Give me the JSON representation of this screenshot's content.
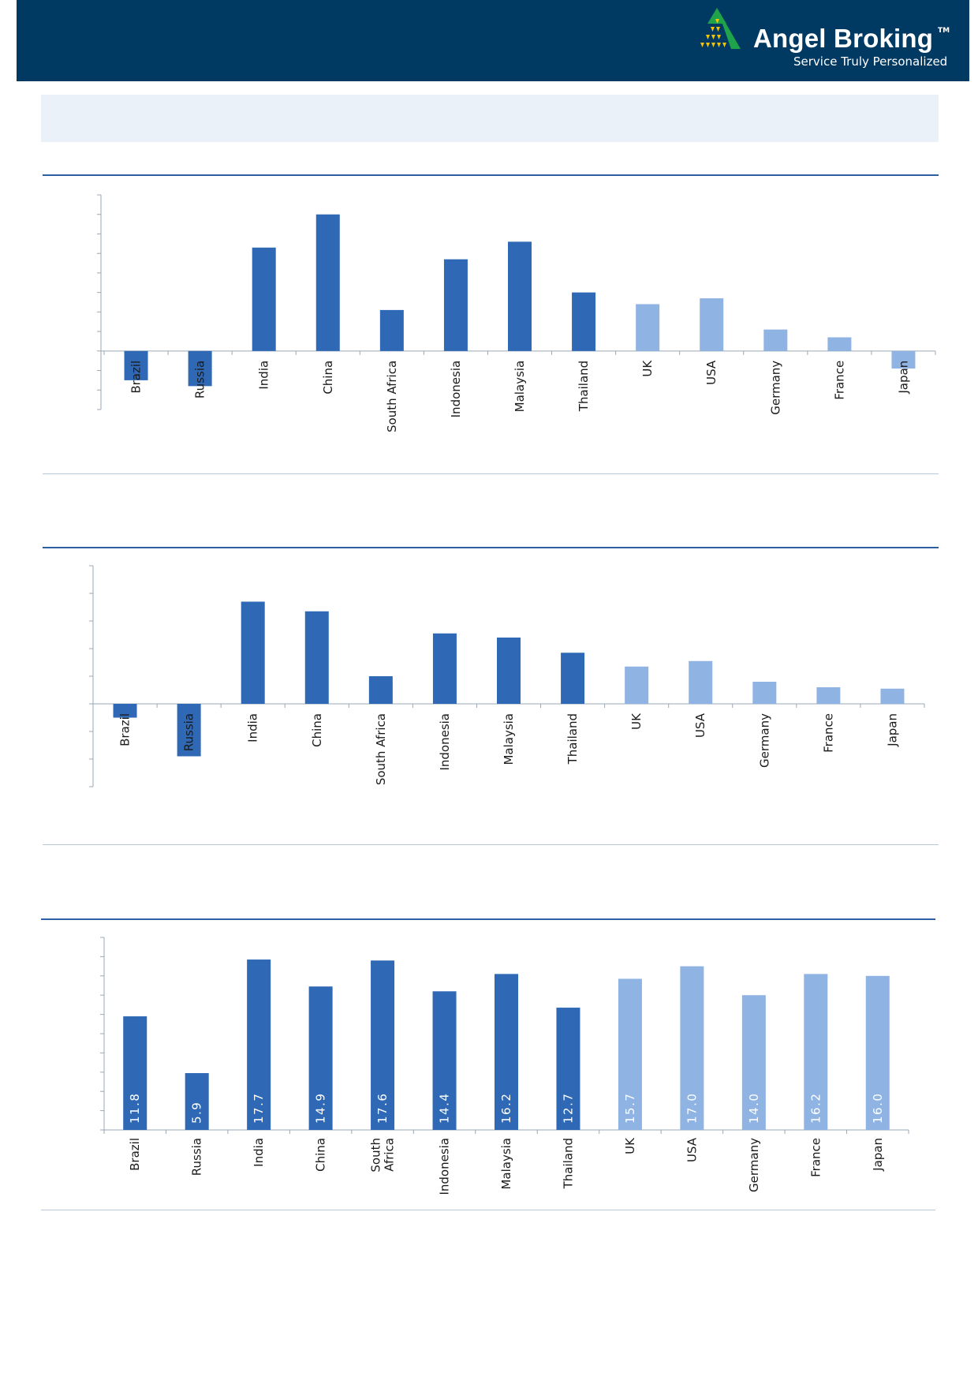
{
  "header": {
    "brand_name": "Angel Broking",
    "trademark": "TM",
    "tagline": "Service Truly Personalized",
    "colors": {
      "background": "#003a63",
      "logo_green": "#1ea34a",
      "logo_yellow": "#f5c400",
      "text": "#ffffff"
    }
  },
  "colors": {
    "emerging": "#2f68b4",
    "developed": "#8fb3e3",
    "axis": "#9aa7b4",
    "rule_top": "#2e5ea3",
    "rule_bottom": "#b8c8d8",
    "banner": "#eaf1f9"
  },
  "chart_data": [
    {
      "type": "bar",
      "categories": [
        "Brazil",
        "Russia",
        "India",
        "China",
        "South Africa",
        "Indonesia",
        "Malaysia",
        "Thailand",
        "UK",
        "USA",
        "Germany",
        "France",
        "Japan"
      ],
      "values": [
        -1.5,
        -1.8,
        5.3,
        7.0,
        2.1,
        4.7,
        5.6,
        3.0,
        2.4,
        2.7,
        1.1,
        0.7,
        -0.9
      ],
      "groups": [
        "emerging",
        "emerging",
        "emerging",
        "emerging",
        "emerging",
        "emerging",
        "emerging",
        "emerging",
        "developed",
        "developed",
        "developed",
        "developed",
        "developed"
      ],
      "ylim": [
        -3,
        8
      ],
      "grid": false,
      "label_position": "at-axis"
    },
    {
      "type": "bar",
      "categories": [
        "Brazil",
        "Russia",
        "India",
        "China",
        "South Africa",
        "Indonesia",
        "Malaysia",
        "Thailand",
        "UK",
        "USA",
        "Germany",
        "France",
        "Japan"
      ],
      "values": [
        -0.5,
        -1.9,
        3.7,
        3.35,
        1.0,
        2.55,
        2.4,
        1.85,
        1.35,
        1.55,
        0.8,
        0.6,
        0.55
      ],
      "groups": [
        "emerging",
        "emerging",
        "emerging",
        "emerging",
        "emerging",
        "emerging",
        "emerging",
        "emerging",
        "developed",
        "developed",
        "developed",
        "developed",
        "developed"
      ],
      "ylim": [
        -3,
        5
      ],
      "grid": false,
      "label_position": "at-axis"
    },
    {
      "type": "bar",
      "categories": [
        "Brazil",
        "Russia",
        "India",
        "China",
        "South Africa",
        "Indonesia",
        "Malaysia",
        "Thailand",
        "UK",
        "USA",
        "Germany",
        "France",
        "Japan"
      ],
      "category_lines": [
        [
          "Brazil"
        ],
        [
          "Russia"
        ],
        [
          "India"
        ],
        [
          "China"
        ],
        [
          "South",
          "Africa"
        ],
        [
          "Indonesia"
        ],
        [
          "Malaysia"
        ],
        [
          "Thailand"
        ],
        [
          "UK"
        ],
        [
          "USA"
        ],
        [
          "Germany"
        ],
        [
          "France"
        ],
        [
          "Japan"
        ]
      ],
      "values": [
        11.8,
        5.9,
        17.7,
        14.9,
        17.6,
        14.4,
        16.2,
        12.7,
        15.7,
        17.0,
        14.0,
        16.2,
        16.0
      ],
      "data_labels": [
        "11.8",
        "5.9",
        "17.7",
        "14.9",
        "17.6",
        "14.4",
        "16.2",
        "12.7",
        "15.7",
        "17.0",
        "14.0",
        "16.2",
        "16.0"
      ],
      "groups": [
        "emerging",
        "emerging",
        "emerging",
        "emerging",
        "emerging",
        "emerging",
        "emerging",
        "emerging",
        "developed",
        "developed",
        "developed",
        "developed",
        "developed"
      ],
      "ylim": [
        0,
        20
      ],
      "grid": false,
      "label_position": "below-axis"
    }
  ]
}
